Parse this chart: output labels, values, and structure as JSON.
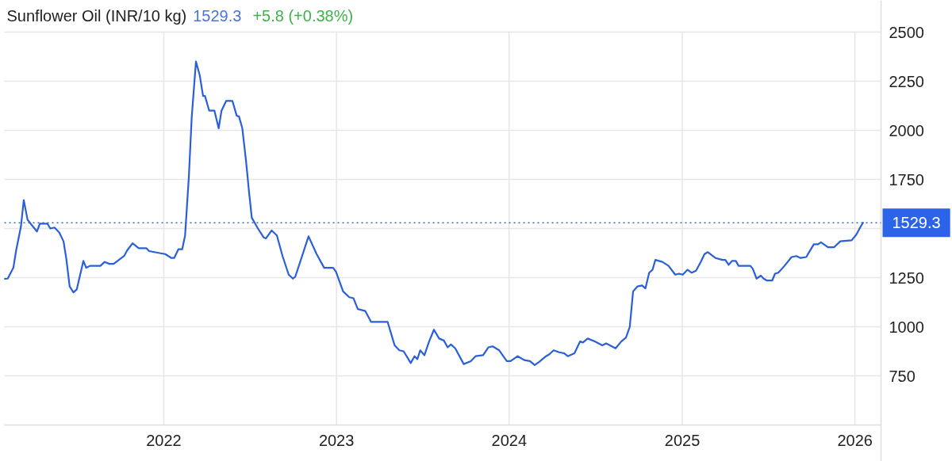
{
  "chart_data": {
    "type": "line",
    "title": "Sunflower Oil (INR/10 kg)",
    "annotations": [
      "1529.3",
      "+5.8 (+0.38%)"
    ],
    "x": [
      "2021-01-30",
      "2021-02-05",
      "2021-02-17",
      "2021-02-23",
      "2021-03-05",
      "2021-03-11",
      "2021-03-19",
      "2021-03-27",
      "2021-04-08",
      "2021-04-14",
      "2021-04-30",
      "2021-05-06",
      "2021-05-15",
      "2021-05-25",
      "2021-06-03",
      "2021-06-09",
      "2021-06-16",
      "2021-06-24",
      "2021-07-01",
      "2021-07-15",
      "2021-07-21",
      "2021-07-29",
      "2021-08-20",
      "2021-08-29",
      "2021-09-08",
      "2021-09-17",
      "2021-10-09",
      "2021-10-16",
      "2021-10-27",
      "2021-11-09",
      "2021-11-25",
      "2021-12-01",
      "2021-12-23",
      "2022-01-04",
      "2022-01-17",
      "2022-01-23",
      "2022-02-01",
      "2022-02-09",
      "2022-02-15",
      "2022-02-23",
      "2022-03-01",
      "2022-03-10",
      "2022-03-18",
      "2022-03-25",
      "2022-03-29",
      "2022-04-07",
      "2022-04-18",
      "2022-04-27",
      "2022-05-03",
      "2022-05-13",
      "2022-05-26",
      "2022-06-04",
      "2022-06-09",
      "2022-06-16",
      "2022-06-24",
      "2022-06-30",
      "2022-07-06",
      "2022-07-19",
      "2022-07-31",
      "2022-08-05",
      "2022-08-17",
      "2022-08-28",
      "2022-09-09",
      "2022-09-22",
      "2022-10-01",
      "2022-10-06",
      "2022-11-03",
      "2022-11-20",
      "2022-12-06",
      "2022-12-25",
      "2022-12-31",
      "2023-01-15",
      "2023-01-28",
      "2023-02-06",
      "2023-02-15",
      "2023-03-03",
      "2023-03-15",
      "2023-04-19",
      "2023-05-04",
      "2023-05-14",
      "2023-05-23",
      "2023-06-07",
      "2023-06-15",
      "2023-06-21",
      "2023-06-27",
      "2023-07-06",
      "2023-07-15",
      "2023-07-26",
      "2023-08-06",
      "2023-08-16",
      "2023-08-24",
      "2023-08-31",
      "2023-09-09",
      "2023-09-27",
      "2023-10-12",
      "2023-10-22",
      "2023-11-07",
      "2023-11-18",
      "2023-11-27",
      "2023-12-11",
      "2023-12-27",
      "2024-01-04",
      "2024-01-19",
      "2024-02-02",
      "2024-02-14",
      "2024-02-24",
      "2024-03-04",
      "2024-03-19",
      "2024-03-26",
      "2024-04-04",
      "2024-04-16",
      "2024-04-26",
      "2024-05-04",
      "2024-05-18",
      "2024-05-30",
      "2024-06-05",
      "2024-06-15",
      "2024-06-30",
      "2024-07-16",
      "2024-07-24",
      "2024-08-13",
      "2024-08-25",
      "2024-09-04",
      "2024-09-12",
      "2024-09-19",
      "2024-09-28",
      "2024-10-08",
      "2024-10-15",
      "2024-10-23",
      "2024-10-30",
      "2024-11-05",
      "2024-11-20",
      "2024-12-03",
      "2024-12-17",
      "2024-12-25",
      "2025-01-02",
      "2025-01-12",
      "2025-01-21",
      "2025-01-30",
      "2025-02-09",
      "2025-02-17",
      "2025-02-24",
      "2025-03-12",
      "2025-03-27",
      "2025-04-02",
      "2025-04-09",
      "2025-04-16",
      "2025-04-24",
      "2025-04-30",
      "2025-05-25",
      "2025-05-30",
      "2025-06-07",
      "2025-06-16",
      "2025-06-22",
      "2025-06-29",
      "2025-07-10",
      "2025-07-16",
      "2025-07-23",
      "2025-08-05",
      "2025-08-20",
      "2025-08-30",
      "2025-09-08",
      "2025-09-20",
      "2025-10-06",
      "2025-10-15",
      "2025-10-21",
      "2025-11-05",
      "2025-11-18",
      "2025-12-01",
      "2025-12-25",
      "2026-01-04",
      "2026-01-13",
      "2026-01-18"
    ],
    "series": [
      {
        "color": "#2b5fd9",
        "values": [
          1244,
          1245,
          1300,
          1390,
          1510,
          1645,
          1545,
          1520,
          1485,
          1525,
          1525,
          1500,
          1505,
          1480,
          1435,
          1345,
          1205,
          1175,
          1190,
          1335,
          1300,
          1310,
          1310,
          1330,
          1320,
          1320,
          1360,
          1390,
          1425,
          1400,
          1400,
          1385,
          1375,
          1370,
          1350,
          1350,
          1395,
          1395,
          1465,
          1765,
          2065,
          2350,
          2280,
          2175,
          2175,
          2100,
          2100,
          2010,
          2100,
          2150,
          2150,
          2075,
          2070,
          2010,
          1840,
          1690,
          1555,
          1500,
          1455,
          1450,
          1490,
          1465,
          1360,
          1265,
          1245,
          1255,
          1460,
          1370,
          1300,
          1300,
          1280,
          1180,
          1150,
          1145,
          1090,
          1080,
          1025,
          1025,
          905,
          880,
          875,
          815,
          850,
          835,
          880,
          855,
          920,
          985,
          940,
          930,
          895,
          910,
          890,
          810,
          825,
          850,
          855,
          895,
          900,
          880,
          825,
          825,
          850,
          830,
          825,
          805,
          820,
          850,
          860,
          880,
          870,
          865,
          850,
          865,
          925,
          920,
          940,
          925,
          905,
          915,
          890,
          925,
          945,
          1000,
          1180,
          1205,
          1210,
          1195,
          1275,
          1290,
          1340,
          1330,
          1310,
          1265,
          1270,
          1265,
          1290,
          1275,
          1285,
          1330,
          1370,
          1380,
          1350,
          1340,
          1340,
          1315,
          1335,
          1335,
          1310,
          1310,
          1295,
          1245,
          1260,
          1245,
          1235,
          1235,
          1270,
          1275,
          1310,
          1355,
          1360,
          1350,
          1355,
          1420,
          1420,
          1430,
          1405,
          1405,
          1435,
          1440,
          1470,
          1510,
          1529.3
        ]
      }
    ],
    "xlim": [
      "2021-01-29",
      "2026-02-25"
    ],
    "xticks": [
      "2022",
      "2023",
      "2024",
      "2025",
      "2026"
    ],
    "ylim": [
      500,
      2500
    ],
    "yticks": [
      750,
      1000,
      1250,
      {
        "value": 1500,
        "label": null
      },
      1750,
      2000,
      2250,
      2500
    ],
    "grid": true,
    "line_style": "solid",
    "ref_lines": [
      {
        "axis": "y",
        "value": 1529.3,
        "label": "1529.3",
        "color": "#2d63e8",
        "line_style": "dotted"
      }
    ]
  }
}
